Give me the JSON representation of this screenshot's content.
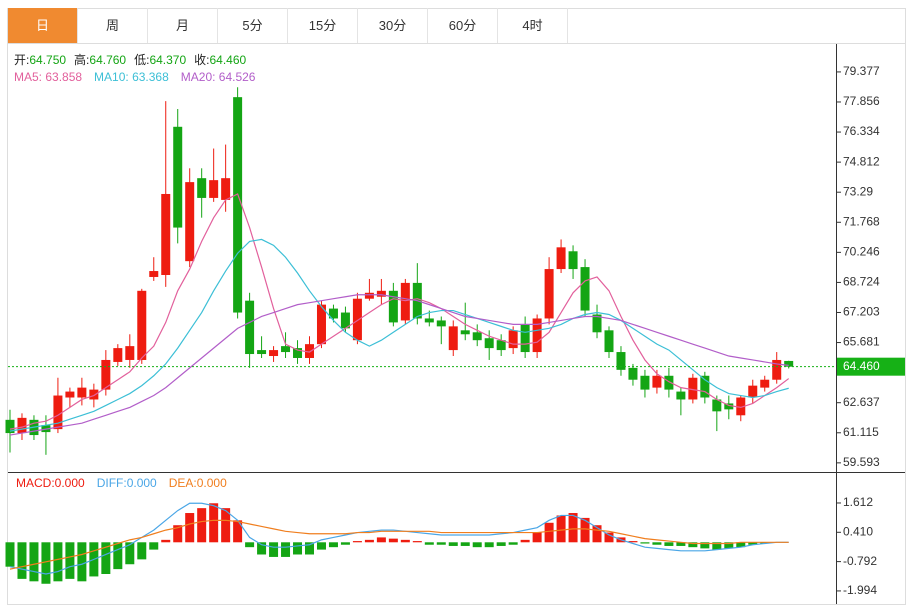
{
  "tabs": [
    "日",
    "周",
    "月",
    "5分",
    "15分",
    "30分",
    "60分",
    "4时"
  ],
  "active_tab": 0,
  "chart_data": [
    {
      "type": "candlestick",
      "ohlc_info": [
        {
          "label": "开:",
          "value": "64.750"
        },
        {
          "label": "高:",
          "value": "64.760"
        },
        {
          "label": "低:",
          "value": "64.370"
        },
        {
          "label": "收:",
          "value": "64.460"
        }
      ],
      "up_color": "#ee1c10",
      "down_color": "#14a514",
      "open": [
        61.77,
        61.1,
        61.77,
        61.5,
        61.3,
        62.9,
        62.9,
        62.8,
        63.3,
        64.7,
        64.8,
        64.8,
        69.0,
        69.1,
        76.6,
        69.8,
        74.0,
        73.0,
        72.9,
        78.1,
        67.8,
        65.3,
        65.0,
        65.5,
        65.4,
        64.9,
        65.6,
        67.4,
        67.2,
        65.8,
        67.9,
        68.0,
        68.3,
        66.8,
        68.7,
        66.9,
        66.8,
        65.3,
        66.3,
        66.2,
        65.9,
        65.8,
        65.4,
        66.6,
        65.2,
        66.9,
        69.4,
        70.3,
        69.5,
        67.1,
        66.3,
        65.2,
        64.4,
        64.0,
        63.4,
        64.0,
        63.2,
        62.8,
        64.0,
        62.8,
        62.6,
        62.0,
        62.9,
        63.4,
        63.8,
        64.75
      ],
      "high": [
        62.28,
        62.1,
        62.0,
        62.0,
        63.9,
        63.4,
        63.9,
        63.6,
        65.3,
        65.6,
        66.1,
        68.4,
        70.0,
        77.9,
        77.5,
        74.5,
        74.5,
        75.5,
        75.7,
        78.6,
        68.2,
        66.0,
        65.5,
        66.2,
        65.8,
        66.0,
        67.8,
        67.6,
        67.5,
        68.2,
        68.9,
        68.9,
        68.7,
        68.9,
        69.7,
        67.3,
        67.0,
        66.8,
        67.7,
        66.6,
        66.3,
        66.1,
        66.5,
        67.0,
        67.1,
        70.0,
        70.9,
        70.6,
        69.9,
        67.6,
        66.5,
        65.5,
        64.6,
        64.3,
        64.3,
        64.4,
        63.4,
        64.1,
        64.2,
        63.0,
        63.0,
        63.0,
        63.8,
        64.0,
        65.2,
        64.76
      ],
      "low": [
        60.12,
        60.75,
        60.75,
        60.0,
        61.1,
        62.4,
        62.5,
        62.4,
        63.0,
        64.5,
        64.4,
        64.6,
        68.8,
        68.5,
        70.7,
        69.5,
        72.0,
        72.8,
        72.3,
        66.9,
        64.4,
        64.9,
        64.7,
        64.9,
        64.6,
        64.6,
        65.4,
        66.7,
        66.2,
        65.6,
        67.8,
        67.6,
        66.5,
        66.6,
        66.6,
        66.5,
        65.6,
        65.0,
        65.8,
        65.5,
        64.8,
        65.0,
        65.1,
        64.9,
        64.9,
        66.6,
        69.2,
        68.9,
        67.0,
        65.9,
        64.9,
        64.0,
        63.5,
        62.9,
        63.1,
        62.9,
        62.0,
        62.6,
        62.6,
        61.2,
        61.8,
        61.7,
        62.6,
        63.2,
        63.6,
        64.37
      ],
      "close": [
        61.1,
        61.87,
        61.0,
        61.15,
        63.0,
        63.2,
        63.4,
        63.3,
        64.8,
        65.4,
        65.5,
        68.3,
        69.3,
        73.2,
        71.5,
        73.8,
        73.0,
        73.9,
        74.0,
        67.2,
        65.1,
        65.1,
        65.3,
        65.2,
        64.9,
        65.6,
        67.6,
        66.9,
        66.4,
        67.9,
        68.2,
        68.3,
        66.7,
        68.7,
        66.9,
        66.7,
        66.5,
        66.5,
        66.1,
        65.8,
        65.4,
        65.3,
        66.3,
        65.2,
        66.9,
        69.4,
        70.5,
        69.4,
        67.3,
        66.2,
        65.2,
        64.3,
        63.8,
        63.3,
        64.0,
        63.3,
        62.8,
        63.9,
        62.9,
        62.2,
        62.3,
        62.9,
        63.5,
        63.8,
        64.8,
        64.46
      ],
      "ma": [
        {
          "legend": "MA5: 63.858",
          "color": "#e2609c",
          "values": [
            61.3,
            61.4,
            61.6,
            61.7,
            62.0,
            62.4,
            62.8,
            63.0,
            63.4,
            63.8,
            64.2,
            64.9,
            65.5,
            66.7,
            68.3,
            69.4,
            70.8,
            72.0,
            72.9,
            73.2,
            71.5,
            69.5,
            67.4,
            65.6,
            65.3,
            65.2,
            65.6,
            66.0,
            66.4,
            66.8,
            67.2,
            67.6,
            67.9,
            67.8,
            67.9,
            67.7,
            67.4,
            67.0,
            66.6,
            66.3,
            66.0,
            65.8,
            65.6,
            65.6,
            65.7,
            66.2,
            67.2,
            68.2,
            68.8,
            69.0,
            68.3,
            67.0,
            65.8,
            64.8,
            64.1,
            63.7,
            63.4,
            63.3,
            63.2,
            62.8,
            62.5,
            62.4,
            62.6,
            63.0,
            63.4,
            63.858
          ]
        },
        {
          "legend": "MA10: 63.368",
          "color": "#3cbfd6",
          "values": [
            61.2,
            61.3,
            61.4,
            61.5,
            61.6,
            61.8,
            62.0,
            62.2,
            62.5,
            62.8,
            63.1,
            63.5,
            64.0,
            64.6,
            65.4,
            66.3,
            67.2,
            68.3,
            69.3,
            70.2,
            70.8,
            70.9,
            70.6,
            70.0,
            69.2,
            68.3,
            67.5,
            66.8,
            66.2,
            65.8,
            65.5,
            65.8,
            66.2,
            66.6,
            67.0,
            67.2,
            67.3,
            67.3,
            67.1,
            66.9,
            66.7,
            66.5,
            66.3,
            66.2,
            66.3,
            66.4,
            66.6,
            66.9,
            67.1,
            67.2,
            67.1,
            66.8,
            66.4,
            66.0,
            65.6,
            65.3,
            64.8,
            64.3,
            63.8,
            63.4,
            63.1,
            63.0,
            62.9,
            63.0,
            63.2,
            63.368
          ]
        },
        {
          "legend": "MA20: 64.526",
          "color": "#b25ec9",
          "values": [
            61.0,
            61.1,
            61.2,
            61.3,
            61.4,
            61.5,
            61.6,
            61.8,
            62.0,
            62.2,
            62.4,
            62.7,
            63.0,
            63.4,
            63.9,
            64.4,
            64.9,
            65.4,
            65.9,
            66.4,
            66.7,
            67.0,
            67.2,
            67.4,
            67.6,
            67.7,
            67.8,
            67.9,
            68.0,
            68.1,
            68.1,
            68.1,
            68.0,
            67.9,
            67.8,
            67.6,
            67.4,
            67.2,
            67.0,
            66.9,
            66.8,
            66.7,
            66.6,
            66.6,
            66.6,
            66.7,
            66.8,
            66.9,
            67.0,
            67.0,
            66.9,
            66.8,
            66.6,
            66.4,
            66.2,
            66.0,
            65.8,
            65.6,
            65.4,
            65.2,
            65.0,
            64.9,
            64.8,
            64.7,
            64.6,
            64.526
          ]
        }
      ],
      "last": {
        "value": 64.46,
        "label": "64.460"
      },
      "last_color": "#16b116",
      "ylim": [
        59.13,
        80.79
      ],
      "yticks": [
        79.377,
        77.856,
        76.334,
        74.812,
        73.29,
        71.768,
        70.246,
        68.724,
        67.203,
        65.681,
        62.637,
        61.115,
        59.593
      ],
      "grid": false
    },
    {
      "type": "macd",
      "legend": [
        {
          "text": "MACD:0.000",
          "color": "#ee1c10"
        },
        {
          "text": "DIFF:0.000",
          "color": "#4aa6e6"
        },
        {
          "text": "DEA:0.000",
          "color": "#f07e1e"
        }
      ],
      "up_color": "#ee1c10",
      "down_color": "#14a514",
      "histogram": [
        -1.0,
        -1.5,
        -1.6,
        -1.7,
        -1.6,
        -1.5,
        -1.6,
        -1.4,
        -1.3,
        -1.1,
        -0.9,
        -0.7,
        -0.3,
        0.1,
        0.7,
        1.2,
        1.4,
        1.6,
        1.4,
        0.9,
        -0.2,
        -0.5,
        -0.6,
        -0.6,
        -0.5,
        -0.5,
        -0.3,
        -0.2,
        -0.1,
        0.05,
        0.1,
        0.2,
        0.15,
        0.1,
        0.05,
        -0.1,
        -0.1,
        -0.15,
        -0.15,
        -0.2,
        -0.2,
        -0.15,
        -0.1,
        0.1,
        0.4,
        0.8,
        1.1,
        1.2,
        1.0,
        0.7,
        0.4,
        0.2,
        0.05,
        -0.05,
        -0.1,
        -0.15,
        -0.15,
        -0.2,
        -0.25,
        -0.3,
        -0.25,
        -0.2,
        -0.1,
        -0.05,
        0.0,
        0.0
      ],
      "diff": [
        -1.0,
        -1.1,
        -1.2,
        -1.3,
        -1.2,
        -1.0,
        -0.9,
        -0.7,
        -0.5,
        -0.3,
        -0.1,
        0.2,
        0.5,
        0.9,
        1.3,
        1.6,
        1.6,
        1.5,
        1.3,
        0.9,
        0.2,
        -0.1,
        -0.2,
        -0.2,
        -0.15,
        -0.1,
        0.1,
        0.2,
        0.3,
        0.4,
        0.45,
        0.5,
        0.5,
        0.45,
        0.4,
        0.35,
        0.3,
        0.3,
        0.3,
        0.3,
        0.3,
        0.35,
        0.4,
        0.5,
        0.6,
        0.9,
        1.1,
        1.1,
        0.9,
        0.6,
        0.3,
        0.1,
        -0.05,
        -0.2,
        -0.25,
        -0.3,
        -0.35,
        -0.35,
        -0.35,
        -0.3,
        -0.25,
        -0.2,
        -0.1,
        -0.05,
        0.0,
        0.0
      ],
      "dea": [
        -1.1,
        -1.0,
        -0.9,
        -0.8,
        -0.7,
        -0.6,
        -0.5,
        -0.35,
        -0.2,
        -0.05,
        0.1,
        0.2,
        0.35,
        0.5,
        0.6,
        0.75,
        0.85,
        0.9,
        0.9,
        0.85,
        0.75,
        0.65,
        0.55,
        0.45,
        0.4,
        0.35,
        0.35,
        0.35,
        0.35,
        0.4,
        0.4,
        0.45,
        0.45,
        0.45,
        0.45,
        0.45,
        0.4,
        0.4,
        0.4,
        0.4,
        0.4,
        0.4,
        0.4,
        0.4,
        0.4,
        0.45,
        0.5,
        0.55,
        0.55,
        0.5,
        0.45,
        0.35,
        0.25,
        0.15,
        0.1,
        0.05,
        0.0,
        -0.05,
        -0.05,
        -0.05,
        -0.05,
        0.0,
        0.0,
        0.0,
        0.0,
        0.0
      ],
      "ylim": [
        -2.53,
        2.8
      ],
      "yticks": [
        1.612,
        {
          "value": 0.41,
          "label": "0.410"
        },
        -0.792,
        -1.994
      ]
    }
  ]
}
